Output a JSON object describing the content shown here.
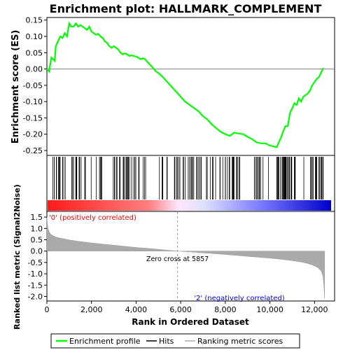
{
  "chart_data": {
    "type": "line",
    "title": "Enrichment plot: HALLMARK_COMPLEMENT",
    "xlabel": "Rank in Ordered Dataset",
    "top_panel": {
      "ylabel": "Enrichment score (ES)",
      "ylim": [
        -0.265,
        0.158
      ],
      "yticks": [
        0.15,
        0.1,
        0.05,
        0.0,
        -0.05,
        -0.1,
        -0.15,
        -0.2,
        -0.25
      ],
      "ytick_labels": [
        "0.15",
        "0.10",
        "0.05",
        "0.00",
        "-0.05",
        "-0.10",
        "-0.15",
        "-0.20",
        "-0.25"
      ],
      "series": [
        {
          "name": "Enrichment profile",
          "color": "#00ff00",
          "x": [
            0,
            100,
            200,
            350,
            400,
            500,
            600,
            700,
            800,
            900,
            1000,
            1100,
            1200,
            1300,
            1400,
            1500,
            1600,
            1700,
            1800,
            1900,
            2000,
            2100,
            2200,
            2300,
            2400,
            2500,
            2600,
            2700,
            2800,
            2900,
            3000,
            3100,
            3200,
            3300,
            3400,
            3500,
            3600,
            3700,
            3800,
            3900,
            4000,
            4100,
            4200,
            4300,
            4400,
            4500,
            4600,
            4700,
            4800,
            4900,
            5000,
            5200,
            5400,
            5600,
            5800,
            6000,
            6200,
            6400,
            6600,
            6800,
            7000,
            7200,
            7400,
            7600,
            7800,
            8000,
            8200,
            8400,
            8600,
            8800,
            9000,
            9200,
            9400,
            9600,
            9800,
            10000,
            10200,
            10300,
            10400,
            10500,
            10600,
            10700,
            10800,
            10900,
            11000,
            11100,
            11200,
            11300,
            11400,
            11500,
            11600,
            11700,
            11800,
            11900,
            12000,
            12100,
            12200,
            12300,
            12400
          ],
          "y": [
            0.0,
            -0.008,
            0.035,
            0.025,
            0.07,
            0.085,
            0.1,
            0.095,
            0.11,
            0.1,
            0.14,
            0.13,
            0.13,
            0.14,
            0.13,
            0.135,
            0.13,
            0.125,
            0.12,
            0.13,
            0.115,
            0.11,
            0.105,
            0.108,
            0.1,
            0.095,
            0.085,
            0.08,
            0.07,
            0.065,
            0.07,
            0.065,
            0.06,
            0.05,
            0.045,
            0.048,
            0.045,
            0.04,
            0.042,
            0.04,
            0.038,
            0.035,
            0.03,
            0.033,
            0.03,
            0.022,
            0.015,
            0.008,
            0.0,
            -0.008,
            -0.012,
            -0.025,
            -0.04,
            -0.055,
            -0.07,
            -0.085,
            -0.1,
            -0.11,
            -0.12,
            -0.13,
            -0.145,
            -0.155,
            -0.17,
            -0.182,
            -0.193,
            -0.2,
            -0.205,
            -0.195,
            -0.198,
            -0.2,
            -0.208,
            -0.215,
            -0.225,
            -0.228,
            -0.228,
            -0.235,
            -0.238,
            -0.24,
            -0.225,
            -0.21,
            -0.19,
            -0.175,
            -0.175,
            -0.135,
            -0.12,
            -0.105,
            -0.11,
            -0.09,
            -0.1,
            -0.085,
            -0.08,
            -0.075,
            -0.065,
            -0.05,
            -0.04,
            -0.03,
            -0.025,
            -0.01,
            0.003
          ]
        }
      ]
    },
    "hits_panel": {
      "legend_label": "Hits"
    },
    "bottom_panel": {
      "ylabel": "Ranked list metric (Signal2Noise)",
      "ylim": [
        -2.2,
        1.75
      ],
      "yticks": [
        1.5,
        1.0,
        0.5,
        0.0,
        -0.5,
        -1.0,
        -1.5,
        -2.0
      ],
      "ytick_labels": [
        "1.5",
        "1.0",
        "0.5",
        "0.0",
        "-0.5",
        "-1.0",
        "-1.5",
        "-2.0"
      ],
      "series": [
        {
          "name": "Ranking metric scores",
          "color": "#aaaaaa",
          "x": [
            0,
            20,
            50,
            100,
            200,
            400,
            700,
            1000,
            1500,
            2000,
            2500,
            3000,
            3500,
            4000,
            4500,
            5000,
            5500,
            5857,
            6200,
            6600,
            7000,
            7500,
            8000,
            8500,
            9000,
            9500,
            10000,
            10500,
            11000,
            11400,
            11700,
            11950,
            12150,
            12300,
            12380,
            12420,
            12450
          ],
          "y": [
            1.5,
            1.25,
            1.0,
            0.85,
            0.72,
            0.62,
            0.55,
            0.49,
            0.42,
            0.36,
            0.31,
            0.26,
            0.21,
            0.16,
            0.12,
            0.08,
            0.03,
            0.0,
            -0.02,
            -0.05,
            -0.08,
            -0.11,
            -0.15,
            -0.19,
            -0.23,
            -0.27,
            -0.31,
            -0.36,
            -0.42,
            -0.48,
            -0.55,
            -0.63,
            -0.73,
            -0.88,
            -1.1,
            -1.5,
            -2.1
          ]
        }
      ],
      "annotations": {
        "positive": "'0' (positively correlated)",
        "negative": "'2' (negatively correlated)",
        "zero_cross": "Zero cross at 5857"
      },
      "zero_cross_rank": 5857
    },
    "xlim": [
      0,
      12900
    ],
    "xticks": [
      0,
      2000,
      4000,
      6000,
      8000,
      10000,
      12000
    ],
    "xtick_labels": [
      "0",
      "2,000",
      "4,000",
      "6,000",
      "8,000",
      "10,000",
      "12,000"
    ],
    "legend": {
      "placement": "bottom",
      "entries": [
        "Enrichment profile",
        "Hits",
        "Ranking metric scores"
      ]
    },
    "colors": {
      "es_line": "#00ff00",
      "hits": "#000000",
      "metric_fill": "#aaaaaa",
      "positive_band": "#ff0000",
      "negative_band": "#0000ff"
    }
  }
}
